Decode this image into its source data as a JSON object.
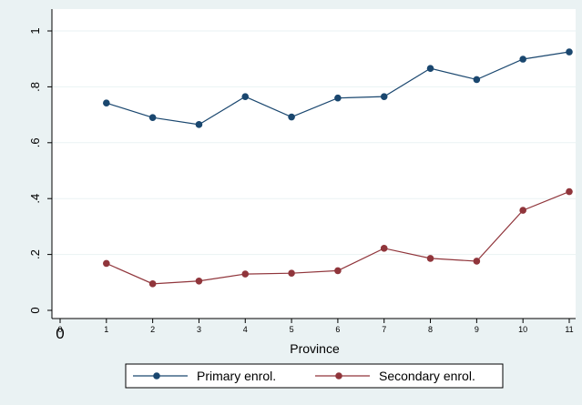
{
  "chart_data": {
    "type": "line",
    "xlabel": "Province",
    "ylabel": "",
    "x": [
      1,
      2,
      3,
      4,
      5,
      6,
      7,
      8,
      9,
      10,
      11
    ],
    "x_ticks": [
      "0",
      "1",
      "2",
      "3",
      "4",
      "5",
      "6",
      "7",
      "8",
      "9",
      "10",
      "11"
    ],
    "x_extra_label": "0",
    "y_ticks": [
      {
        "value": 0,
        "label": "0"
      },
      {
        "value": 0.2,
        "label": ".2"
      },
      {
        "value": 0.4,
        "label": ".4"
      },
      {
        "value": 0.6,
        "label": ".6"
      },
      {
        "value": 0.8,
        "label": ".8"
      },
      {
        "value": 1,
        "label": "1"
      }
    ],
    "xlim": [
      0,
      11
    ],
    "ylim": [
      0,
      1
    ],
    "grid": true,
    "legend_position": "bottom",
    "series": [
      {
        "name": "Primary enrol.",
        "color": "#1a476f",
        "values": [
          0.742,
          0.69,
          0.665,
          0.765,
          0.692,
          0.76,
          0.765,
          0.866,
          0.826,
          0.899,
          0.925
        ]
      },
      {
        "name": "Secondary enrol.",
        "color": "#90353b",
        "values": [
          0.168,
          0.095,
          0.105,
          0.13,
          0.133,
          0.142,
          0.222,
          0.186,
          0.176,
          0.358,
          0.425
        ]
      }
    ]
  }
}
